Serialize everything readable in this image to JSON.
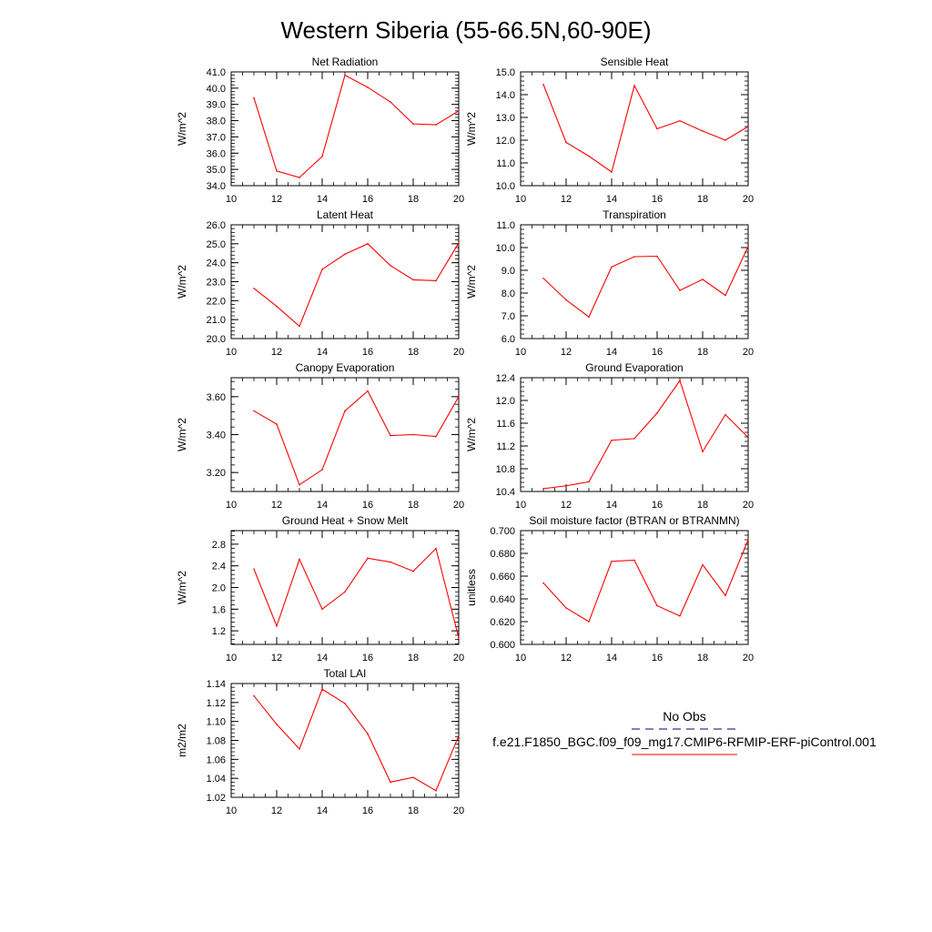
{
  "title": "Western Siberia (55-66.5N,60-90E)",
  "colors": {
    "model_line": "#ff0000",
    "obs_line": "#000080",
    "axis": "#000000"
  },
  "legend": {
    "obs_label": "No Obs",
    "model_label": "f.e21.F1850_BGC.f09_f09_mg17.CMIP6-RFMIP-ERF-piControl.001"
  },
  "chart_data": [
    {
      "type": "line",
      "title": "Net Radiation",
      "ylabel": "W/m^2",
      "xlim": [
        10,
        20
      ],
      "ylim": [
        34,
        41
      ],
      "xticks": [
        10,
        12,
        14,
        16,
        18,
        20
      ],
      "xtick_labels": [
        "10",
        "12",
        "14",
        "16",
        "18",
        "20"
      ],
      "yticks": [
        34,
        35,
        36,
        37,
        38,
        39,
        40,
        41
      ],
      "ytick_labels": [
        "34.0",
        "35.0",
        "36.0",
        "37.0",
        "38.0",
        "39.0",
        "40.0",
        "41.0"
      ],
      "x": [
        11,
        12,
        13,
        14,
        15,
        16,
        17,
        18,
        19,
        20
      ],
      "series": [
        {
          "values": [
            39.4,
            34.9,
            34.5,
            35.8,
            40.8,
            40.05,
            39.15,
            37.8,
            37.75,
            38.6
          ]
        }
      ]
    },
    {
      "type": "line",
      "title": "Sensible Heat",
      "ylabel": "W/m^2",
      "xlim": [
        10,
        20
      ],
      "ylim": [
        10,
        15
      ],
      "xticks": [
        10,
        12,
        14,
        16,
        18,
        20
      ],
      "xtick_labels": [
        "10",
        "12",
        "14",
        "16",
        "18",
        "20"
      ],
      "yticks": [
        10,
        11,
        12,
        13,
        14,
        15
      ],
      "ytick_labels": [
        "10.0",
        "11.0",
        "12.0",
        "13.0",
        "14.0",
        "15.0"
      ],
      "x": [
        11,
        12,
        13,
        14,
        15,
        16,
        17,
        18,
        19,
        20
      ],
      "series": [
        {
          "values": [
            14.45,
            11.9,
            11.3,
            10.6,
            14.4,
            12.5,
            12.85,
            12.4,
            12.0,
            12.6
          ]
        }
      ]
    },
    {
      "type": "line",
      "title": "Latent Heat",
      "ylabel": "W/m^2",
      "xlim": [
        10,
        20
      ],
      "ylim": [
        20,
        26
      ],
      "xticks": [
        10,
        12,
        14,
        16,
        18,
        20
      ],
      "xtick_labels": [
        "10",
        "12",
        "14",
        "16",
        "18",
        "20"
      ],
      "yticks": [
        20,
        21,
        22,
        23,
        24,
        25,
        26
      ],
      "ytick_labels": [
        "20.0",
        "21.0",
        "22.0",
        "23.0",
        "24.0",
        "25.0",
        "26.0"
      ],
      "x": [
        11,
        12,
        13,
        14,
        15,
        16,
        17,
        18,
        19,
        20
      ],
      "series": [
        {
          "values": [
            22.65,
            21.7,
            20.65,
            23.65,
            24.45,
            25.0,
            23.85,
            23.1,
            23.05,
            25.05
          ]
        }
      ]
    },
    {
      "type": "line",
      "title": "Transpiration",
      "ylabel": "W/m^2",
      "xlim": [
        10,
        20
      ],
      "ylim": [
        6,
        11
      ],
      "xticks": [
        10,
        12,
        14,
        16,
        18,
        20
      ],
      "xtick_labels": [
        "10",
        "12",
        "14",
        "16",
        "18",
        "20"
      ],
      "yticks": [
        6,
        7,
        8,
        9,
        10,
        11
      ],
      "ytick_labels": [
        "6.0",
        "7.0",
        "8.0",
        "9.0",
        "10.0",
        "11.0"
      ],
      "x": [
        11,
        12,
        13,
        14,
        15,
        16,
        17,
        18,
        19,
        20
      ],
      "series": [
        {
          "values": [
            8.65,
            7.7,
            6.95,
            9.15,
            9.6,
            9.62,
            8.12,
            8.6,
            7.9,
            10.05
          ]
        }
      ]
    },
    {
      "type": "line",
      "title": "Canopy Evaporation",
      "ylabel": "W/m^2",
      "xlim": [
        10,
        20
      ],
      "ylim": [
        3.1,
        3.7
      ],
      "xticks": [
        10,
        12,
        14,
        16,
        18,
        20
      ],
      "xtick_labels": [
        "10",
        "12",
        "14",
        "16",
        "18",
        "20"
      ],
      "yticks": [
        3.2,
        3.4,
        3.6
      ],
      "ytick_labels": [
        "3.20",
        "3.40",
        "3.60"
      ],
      "x": [
        11,
        12,
        13,
        14,
        15,
        16,
        17,
        18,
        19,
        20
      ],
      "series": [
        {
          "values": [
            3.525,
            3.455,
            3.135,
            3.215,
            3.525,
            3.63,
            3.395,
            3.4,
            3.39,
            3.6
          ]
        }
      ]
    },
    {
      "type": "line",
      "title": "Ground Evaporation",
      "ylabel": "W/m^2",
      "xlim": [
        10,
        20
      ],
      "ylim": [
        10.4,
        12.4
      ],
      "xticks": [
        10,
        12,
        14,
        16,
        18,
        20
      ],
      "xtick_labels": [
        "10",
        "12",
        "14",
        "16",
        "18",
        "20"
      ],
      "yticks": [
        10.4,
        10.8,
        11.2,
        11.6,
        12.0,
        12.4
      ],
      "ytick_labels": [
        "10.4",
        "10.8",
        "11.2",
        "11.6",
        "12.0",
        "12.4"
      ],
      "x": [
        11,
        12,
        13,
        14,
        15,
        16,
        17,
        18,
        19,
        20
      ],
      "series": [
        {
          "values": [
            10.45,
            10.5,
            10.57,
            11.3,
            11.33,
            11.78,
            12.35,
            11.1,
            11.75,
            11.35
          ]
        }
      ]
    },
    {
      "type": "line",
      "title": "Ground Heat + Snow Melt",
      "ylabel": "W/m^2",
      "xlim": [
        10,
        20
      ],
      "ylim": [
        0.95,
        3.05
      ],
      "xticks": [
        10,
        12,
        14,
        16,
        18,
        20
      ],
      "xtick_labels": [
        "10",
        "12",
        "14",
        "16",
        "18",
        "20"
      ],
      "yticks": [
        1.2,
        1.6,
        2.0,
        2.4,
        2.8
      ],
      "ytick_labels": [
        "1.2",
        "1.6",
        "2.0",
        "2.4",
        "2.8"
      ],
      "x": [
        11,
        12,
        13,
        14,
        15,
        16,
        17,
        18,
        19,
        20
      ],
      "series": [
        {
          "values": [
            2.34,
            1.29,
            2.52,
            1.6,
            1.92,
            2.54,
            2.47,
            2.3,
            2.72,
            1.07
          ]
        }
      ]
    },
    {
      "type": "line",
      "title": "Soil moisture factor (BTRAN or BTRANMN)",
      "ylabel": "unitless",
      "xlim": [
        10,
        20
      ],
      "ylim": [
        0.6,
        0.7
      ],
      "xticks": [
        10,
        12,
        14,
        16,
        18,
        20
      ],
      "xtick_labels": [
        "10",
        "12",
        "14",
        "16",
        "18",
        "20"
      ],
      "yticks": [
        0.6,
        0.62,
        0.64,
        0.66,
        0.68,
        0.7
      ],
      "ytick_labels": [
        "0.600",
        "0.620",
        "0.640",
        "0.660",
        "0.680",
        "0.700"
      ],
      "x": [
        11,
        12,
        13,
        14,
        15,
        16,
        17,
        18,
        19,
        20
      ],
      "series": [
        {
          "values": [
            0.654,
            0.632,
            0.62,
            0.673,
            0.674,
            0.634,
            0.625,
            0.67,
            0.643,
            0.692
          ]
        }
      ]
    },
    {
      "type": "line",
      "title": "Total LAI",
      "ylabel": "m2/m2",
      "xlim": [
        10,
        20
      ],
      "ylim": [
        1.02,
        1.14
      ],
      "xticks": [
        10,
        12,
        14,
        16,
        18,
        20
      ],
      "xtick_labels": [
        "10",
        "12",
        "14",
        "16",
        "18",
        "20"
      ],
      "yticks": [
        1.02,
        1.04,
        1.06,
        1.08,
        1.1,
        1.12,
        1.14
      ],
      "ytick_labels": [
        "1.02",
        "1.04",
        "1.06",
        "1.08",
        "1.10",
        "1.12",
        "1.14"
      ],
      "x": [
        11,
        12,
        13,
        14,
        15,
        16,
        17,
        18,
        19,
        20
      ],
      "series": [
        {
          "values": [
            1.127,
            1.097,
            1.071,
            1.134,
            1.119,
            1.087,
            1.036,
            1.041,
            1.027,
            1.085
          ]
        }
      ]
    }
  ]
}
